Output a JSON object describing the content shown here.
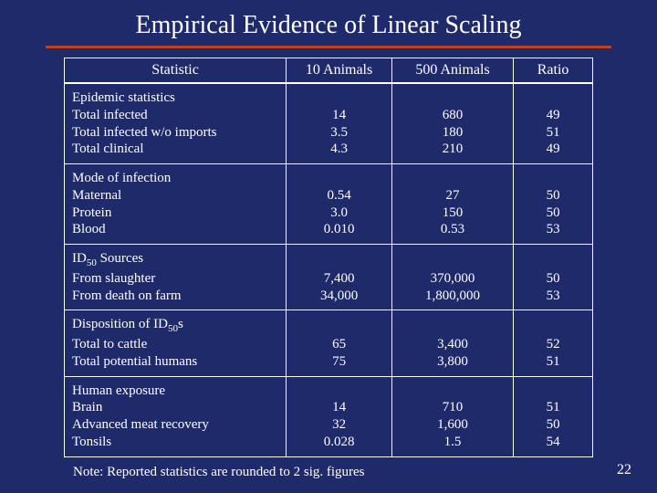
{
  "title": "Empirical Evidence of Linear Scaling",
  "columns": [
    "Statistic",
    "10 Animals",
    "500 Animals",
    "Ratio"
  ],
  "groups": [
    {
      "heading": "Epidemic statistics",
      "rows": [
        {
          "label": "Total infected",
          "v1": "14",
          "v2": "680",
          "v3": "49"
        },
        {
          "label": "Total infected w/o imports",
          "v1": "3.5",
          "v2": "180",
          "v3": "51"
        },
        {
          "label": "Total clinical",
          "v1": "4.3",
          "v2": "210",
          "v3": "49"
        }
      ]
    },
    {
      "heading": "Mode of infection",
      "rows": [
        {
          "label": "Maternal",
          "v1": "0.54",
          "v2": "27",
          "v3": "50"
        },
        {
          "label": "Protein",
          "v1": "3.0",
          "v2": "150",
          "v3": "50"
        },
        {
          "label": "Blood",
          "v1": "0.010",
          "v2": "0.53",
          "v3": "53"
        }
      ]
    },
    {
      "heading": "ID<sub>50</sub> Sources",
      "rows": [
        {
          "label": "From slaughter",
          "v1": "7,400",
          "v2": "370,000",
          "v3": "50"
        },
        {
          "label": "From death on farm",
          "v1": "34,000",
          "v2": "1,800,000",
          "v3": "53"
        }
      ]
    },
    {
      "heading": "Disposition of ID<sub>50</sub>s",
      "rows": [
        {
          "label": "Total to cattle",
          "v1": "65",
          "v2": "3,400",
          "v3": "52"
        },
        {
          "label": "Total potential humans",
          "v1": "75",
          "v2": "3,800",
          "v3": "51"
        }
      ]
    },
    {
      "heading": "Human exposure",
      "rows": [
        {
          "label": "Brain",
          "v1": "14",
          "v2": "710",
          "v3": "51"
        },
        {
          "label": "Advanced meat recovery",
          "v1": "32",
          "v2": "1,600",
          "v3": "50"
        },
        {
          "label": "Tonsils",
          "v1": "0.028",
          "v2": "1.5",
          "v3": "54"
        }
      ]
    }
  ],
  "footnote": "Note: Reported statistics are rounded to 2 sig. figures",
  "pagenum": "22",
  "colors": {
    "background": "#1f2a6b",
    "rule": "#c04020",
    "text": "#ffffff"
  }
}
